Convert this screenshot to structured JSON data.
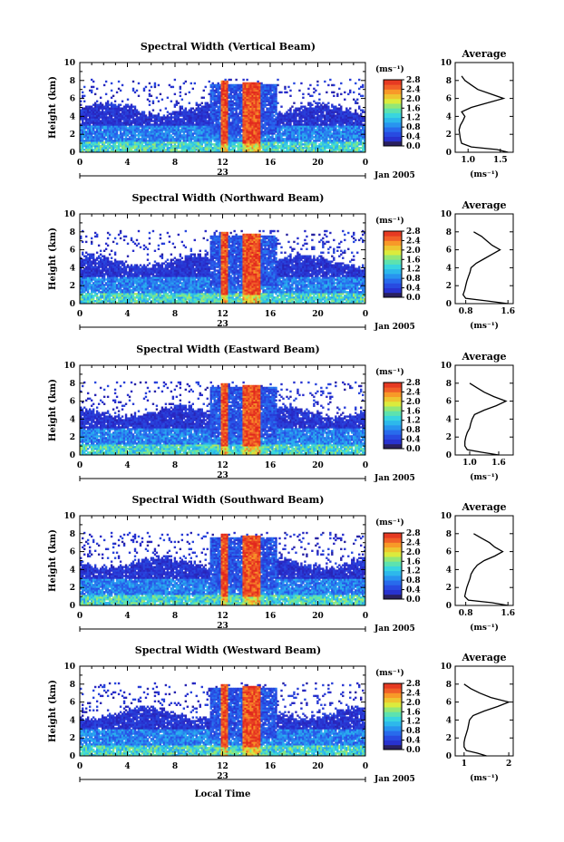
{
  "chart_data": [
    {
      "type": "heatmap",
      "title": "Spectral Width (Vertical Beam)",
      "ylabel": "Height (km)",
      "ylim": [
        0,
        10
      ],
      "yticks": [
        "0",
        "2",
        "4",
        "6",
        "8",
        "10"
      ],
      "xlim": [
        0,
        24
      ],
      "xticks": [
        "0",
        "4",
        "8",
        "12",
        "16",
        "20",
        "0"
      ],
      "date_day": "23",
      "date_month": "Jan 2005",
      "colorbar": {
        "unit": "(ms⁻¹)",
        "labels": [
          "0.0",
          "0.4",
          "0.8",
          "1.2",
          "1.6",
          "2.0",
          "2.4",
          "2.8"
        ],
        "range": [
          0,
          2.8
        ]
      },
      "profile": {
        "title": "Average",
        "xlabel": "(ms⁻¹)",
        "xticks": [
          "1.0",
          "1.5"
        ],
        "xlim": [
          0.8,
          1.7
        ],
        "heights": [
          0,
          0.3,
          0.6,
          1,
          1.5,
          2,
          2.5,
          3,
          3.5,
          4,
          4.5,
          5,
          5.5,
          6,
          6.5,
          7,
          7.5,
          8,
          8.5
        ],
        "values": [
          1.62,
          1.45,
          1.05,
          0.9,
          0.88,
          0.87,
          0.86,
          0.88,
          0.92,
          0.95,
          0.9,
          1.05,
          1.3,
          1.55,
          1.35,
          1.15,
          1.05,
          0.95,
          0.9
        ]
      }
    },
    {
      "type": "heatmap",
      "title": "Spectral Width (Northward Beam)",
      "ylabel": "Height (km)",
      "ylim": [
        0,
        10
      ],
      "yticks": [
        "0",
        "2",
        "4",
        "6",
        "8",
        "10"
      ],
      "xlim": [
        0,
        24
      ],
      "xticks": [
        "0",
        "4",
        "8",
        "12",
        "16",
        "20",
        "0"
      ],
      "date_day": "23",
      "date_month": "Jan 2005",
      "colorbar": {
        "unit": "(ms⁻¹)",
        "labels": [
          "0.0",
          "0.4",
          "0.8",
          "1.2",
          "1.6",
          "2.0",
          "2.4",
          "2.8"
        ],
        "range": [
          0,
          2.8
        ]
      },
      "profile": {
        "title": "Average",
        "xlabel": "(ms⁻¹)",
        "xticks": [
          "0.8",
          "1.6"
        ],
        "xlim": [
          0.6,
          1.7
        ],
        "heights": [
          0,
          0.3,
          0.6,
          1,
          1.5,
          2,
          2.5,
          3,
          3.5,
          4,
          4.5,
          5,
          5.5,
          6,
          6.5,
          7,
          7.5,
          8
        ],
        "values": [
          1.6,
          1.2,
          0.8,
          0.75,
          0.78,
          0.8,
          0.82,
          0.85,
          0.88,
          0.9,
          1.0,
          1.15,
          1.3,
          1.45,
          1.3,
          1.2,
          1.1,
          0.95
        ]
      }
    },
    {
      "type": "heatmap",
      "title": "Spectral Width (Eastward Beam)",
      "ylabel": "Height (km)",
      "ylim": [
        0,
        10
      ],
      "yticks": [
        "0",
        "2",
        "4",
        "6",
        "8",
        "10"
      ],
      "xlim": [
        0,
        24
      ],
      "xticks": [
        "0",
        "4",
        "8",
        "12",
        "16",
        "20",
        "0"
      ],
      "date_day": "23",
      "date_month": "Jan 2005",
      "colorbar": {
        "unit": "(ms⁻¹)",
        "labels": [
          "0.0",
          "0.4",
          "0.8",
          "1.2",
          "1.6",
          "2.0",
          "2.4",
          "2.8"
        ],
        "range": [
          0,
          2.8
        ]
      },
      "profile": {
        "title": "Average",
        "xlabel": "(ms⁻¹)",
        "xticks": [
          "1.0",
          "1.6"
        ],
        "xlim": [
          0.7,
          1.9
        ],
        "heights": [
          0,
          0.3,
          0.6,
          1,
          1.5,
          2,
          2.5,
          3,
          3.5,
          4,
          4.5,
          5,
          5.5,
          6,
          6.5,
          7,
          7.5,
          8
        ],
        "values": [
          1.6,
          1.25,
          0.95,
          0.9,
          0.9,
          0.92,
          0.95,
          1.0,
          1.02,
          1.05,
          1.1,
          1.3,
          1.55,
          1.75,
          1.5,
          1.3,
          1.15,
          1.0
        ]
      }
    },
    {
      "type": "heatmap",
      "title": "Spectral Width (Southward Beam)",
      "ylabel": "Height (km)",
      "ylim": [
        0,
        10
      ],
      "yticks": [
        "0",
        "2",
        "4",
        "6",
        "8",
        "10"
      ],
      "xlim": [
        0,
        24
      ],
      "xticks": [
        "0",
        "4",
        "8",
        "12",
        "16",
        "20",
        "0"
      ],
      "date_day": "23",
      "date_month": "Jan 2005",
      "colorbar": {
        "unit": "(ms⁻¹)",
        "labels": [
          "0.0",
          "0.4",
          "0.8",
          "1.2",
          "1.6",
          "2.0",
          "2.4",
          "2.8"
        ],
        "range": [
          0,
          2.8
        ]
      },
      "profile": {
        "title": "Average",
        "xlabel": "(ms⁻¹)",
        "xticks": [
          "0.8",
          "1.6"
        ],
        "xlim": [
          0.6,
          1.7
        ],
        "heights": [
          0,
          0.3,
          0.6,
          1,
          1.5,
          2,
          2.5,
          3,
          3.5,
          4,
          4.5,
          5,
          5.5,
          6,
          6.5,
          7,
          7.5,
          8
        ],
        "values": [
          1.6,
          1.3,
          0.85,
          0.78,
          0.8,
          0.82,
          0.85,
          0.88,
          0.9,
          0.95,
          1.02,
          1.15,
          1.35,
          1.5,
          1.35,
          1.25,
          1.1,
          0.95
        ]
      }
    },
    {
      "type": "heatmap",
      "title": "Spectral Width (Westward Beam)",
      "ylabel": "Height (km)",
      "ylim": [
        0,
        10
      ],
      "yticks": [
        "0",
        "2",
        "4",
        "6",
        "8",
        "10"
      ],
      "xlim": [
        0,
        24
      ],
      "xticks": [
        "0",
        "4",
        "8",
        "12",
        "16",
        "20",
        "0"
      ],
      "date_day": "23",
      "date_month": "Jan 2005",
      "xlabel": "Local Time",
      "colorbar": {
        "unit": "(ms⁻¹)",
        "labels": [
          "0.0",
          "0.4",
          "0.8",
          "1.2",
          "1.6",
          "2.0",
          "2.4",
          "2.8"
        ],
        "range": [
          0,
          2.8
        ]
      },
      "profile": {
        "title": "Average",
        "xlabel": "(ms⁻¹)",
        "xticks": [
          "1",
          "2"
        ],
        "xlim": [
          0.8,
          2.1
        ],
        "heights": [
          0,
          0.3,
          0.6,
          1,
          1.5,
          2,
          2.5,
          3,
          3.5,
          4,
          4.5,
          5,
          5.5,
          6,
          6.5,
          7,
          7.5,
          8
        ],
        "values": [
          1.5,
          1.3,
          1.05,
          1.0,
          1.0,
          1.02,
          1.05,
          1.08,
          1.1,
          1.12,
          1.2,
          1.45,
          1.75,
          2.0,
          1.6,
          1.35,
          1.15,
          1.0
        ]
      }
    }
  ]
}
